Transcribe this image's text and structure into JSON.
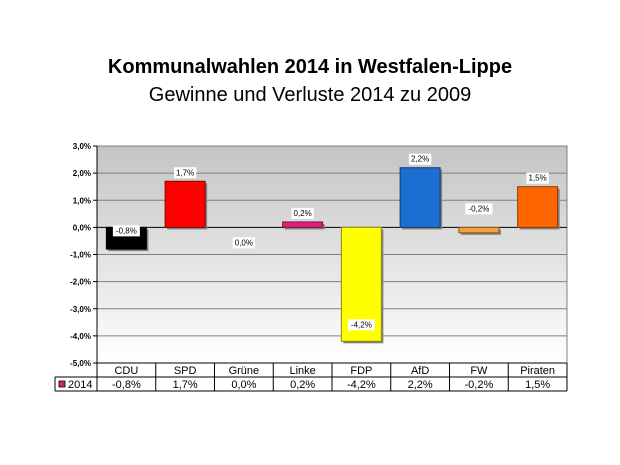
{
  "chart_data": {
    "type": "bar",
    "title": "Kommunalwahlen 2014 in Westfalen-Lippe",
    "subtitle": "Gewinne und Verluste 2014 zu 2009",
    "categories": [
      "CDU",
      "SPD",
      "Grüne",
      "Linke",
      "FDP",
      "AfD",
      "FW",
      "Piraten"
    ],
    "series": [
      {
        "name": "2014",
        "values": [
          -0.8,
          1.7,
          0.0,
          0.2,
          -4.2,
          2.2,
          -0.2,
          1.5
        ],
        "labels": [
          "-0,8%",
          "1,7%",
          "0,0%",
          "0,2%",
          "-4,2%",
          "2,2%",
          "-0,2%",
          "1,5%"
        ]
      }
    ],
    "bar_colors": [
      "#000000",
      "#ff0000",
      "#00a000",
      "#e0207a",
      "#ffff00",
      "#1a6fd0",
      "#f5a040",
      "#ff6600"
    ],
    "ylim": [
      -5.0,
      3.0
    ],
    "yticks": [
      -5.0,
      -4.0,
      -3.0,
      -2.0,
      -1.0,
      0.0,
      1.0,
      2.0,
      3.0
    ],
    "ytick_labels": [
      "-5,0%",
      "-4,0%",
      "-3,0%",
      "-2,0%",
      "-1,0%",
      "0,0%",
      "1,0%",
      "2,0%",
      "3,0%"
    ],
    "grid": true,
    "legend_color": "#e0207a",
    "data_table": true
  }
}
